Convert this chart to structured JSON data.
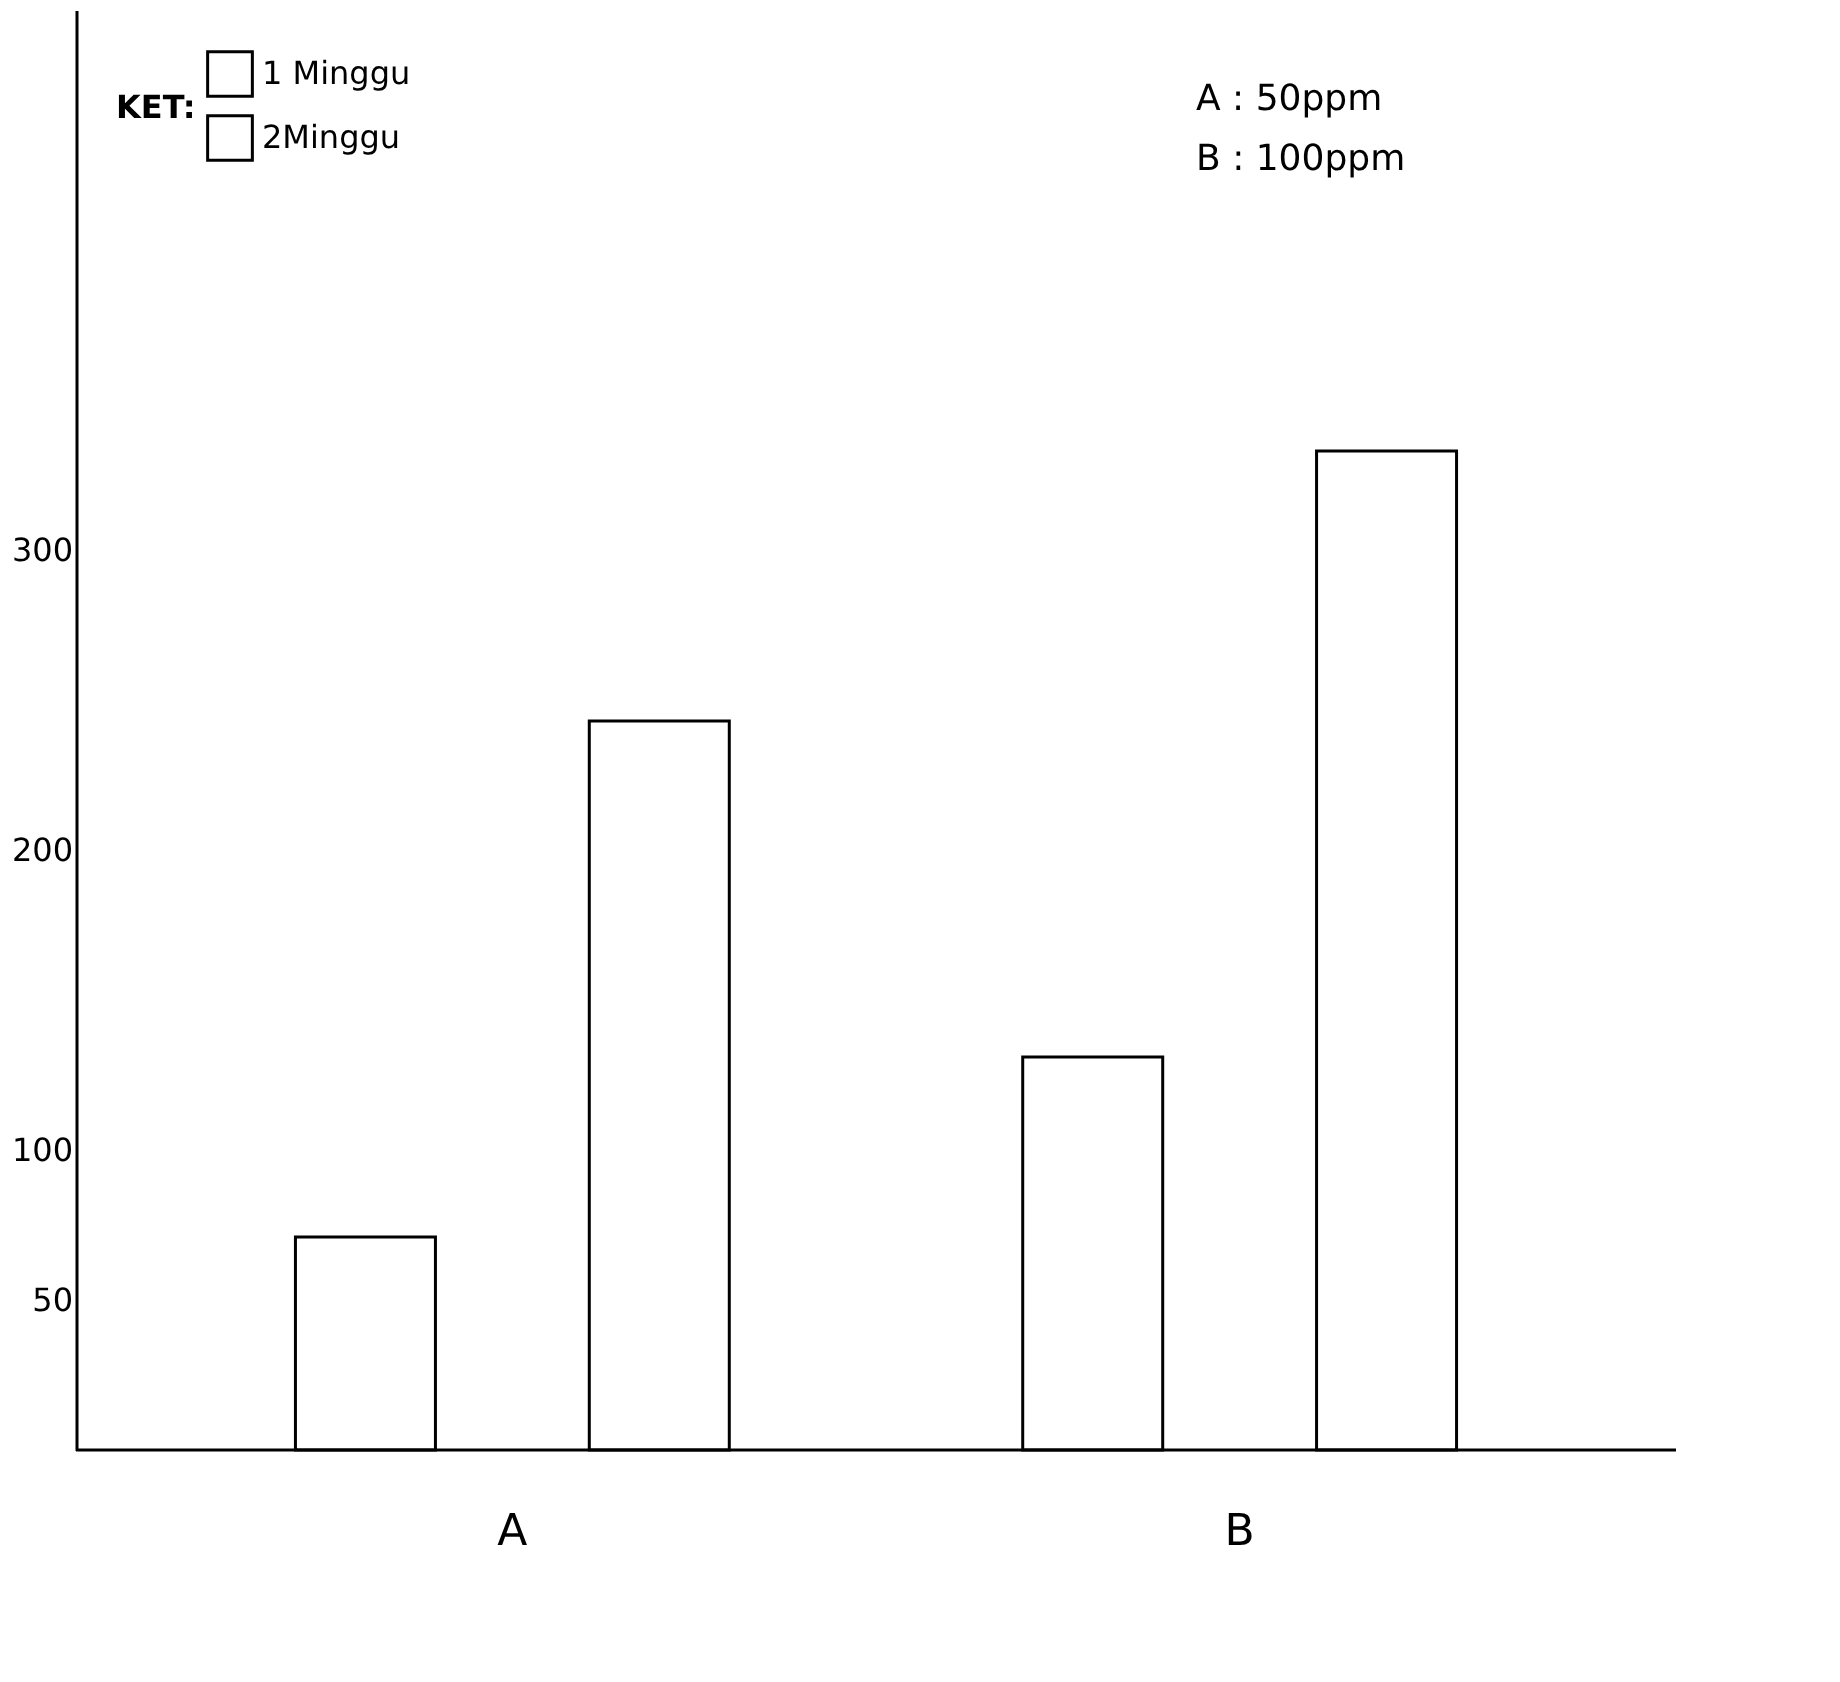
{
  "chart_data": {
    "type": "bar",
    "categories": [
      "A",
      "B"
    ],
    "series": [
      {
        "name": "1 Minggu",
        "color": "#ffffff",
        "values": [
          71,
          131
        ]
      },
      {
        "name": "2Minggu",
        "color": "#ffffff",
        "values": [
          243,
          333
        ]
      }
    ],
    "ylim": [
      0,
      480
    ],
    "yticks": [
      50,
      100,
      200,
      300
    ],
    "grid": false,
    "legend": "top left",
    "legend_title": "KET:",
    "annotations": [
      "A : 50ppm",
      "B : 100ppm"
    ]
  }
}
